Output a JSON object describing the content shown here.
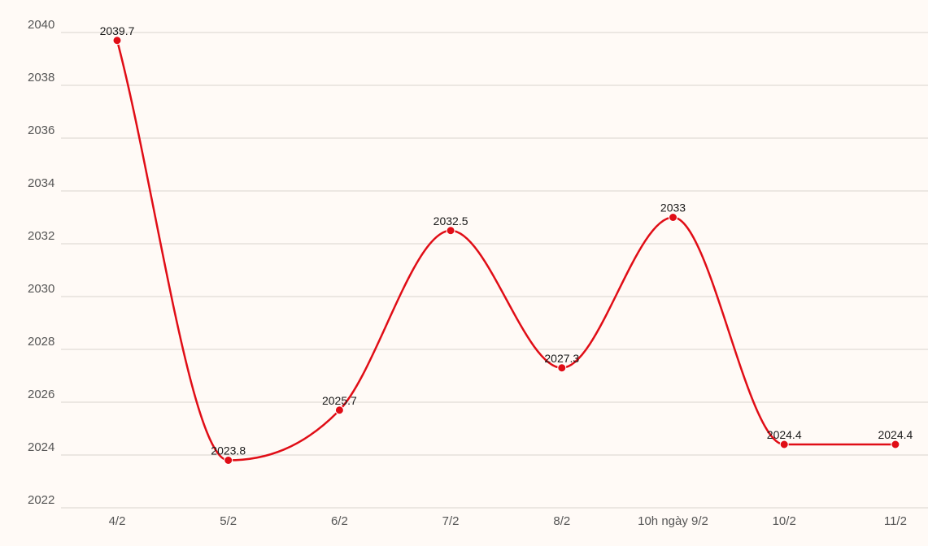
{
  "chart_data": {
    "type": "line",
    "categories": [
      "4/2",
      "5/2",
      "6/2",
      "7/2",
      "8/2",
      "10h ngày 9/2",
      "10/2",
      "11/2"
    ],
    "series": [
      {
        "values": [
          2039.7,
          2023.8,
          2025.7,
          2032.5,
          2027.3,
          2033,
          2024.4,
          2024.4
        ],
        "labels": [
          "2039.7",
          "2023.8",
          "2025.7",
          "2032.5",
          "2027.3",
          "2033",
          "2024.4",
          "2024.4"
        ],
        "color": "#e00d16"
      }
    ],
    "yticks": [
      "2022",
      "2024",
      "2026",
      "2028",
      "2030",
      "2032",
      "2034",
      "2036",
      "2038",
      "2040"
    ],
    "ylim": [
      2022,
      2040
    ],
    "grid": true,
    "smooth": true,
    "background": "#fffaf6"
  }
}
